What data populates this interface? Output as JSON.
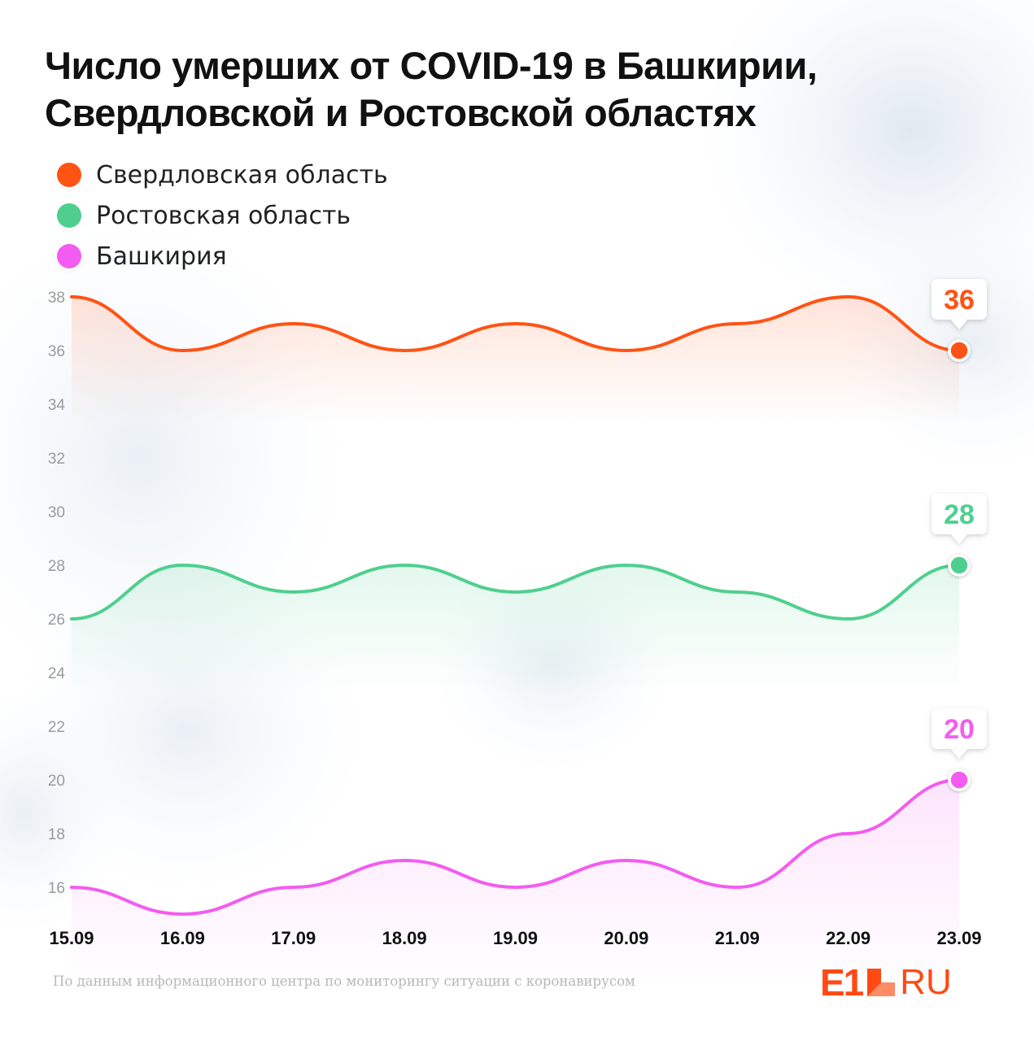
{
  "title": {
    "line1": "Число умерших от COVID-19 в Башкирии,",
    "line2": "Свердловской и Ростовской областях"
  },
  "legend": [
    {
      "label": "Свердловская область",
      "color": "#ff5314"
    },
    {
      "label": "Ростовская область",
      "color": "#4fcf8f"
    },
    {
      "label": "Башкирия",
      "color": "#f35cf0"
    }
  ],
  "chart_data": {
    "type": "line",
    "categories": [
      "15.09",
      "16.09",
      "17.09",
      "18.09",
      "19.09",
      "20.09",
      "21.09",
      "22.09",
      "23.09"
    ],
    "ylim": [
      16,
      38
    ],
    "yticks": [
      38,
      36,
      34,
      32,
      30,
      28,
      26,
      24,
      22,
      20,
      18,
      16
    ],
    "grid": false,
    "legend_position": "top-left",
    "series": [
      {
        "name": "Свердловская область",
        "color": "#ff5314",
        "values": [
          38,
          36,
          37,
          36,
          37,
          36,
          37,
          38,
          36
        ],
        "last_label": "36"
      },
      {
        "name": "Ростовская область",
        "color": "#4fcf8f",
        "values": [
          26,
          28,
          27,
          28,
          27,
          28,
          27,
          26,
          28
        ],
        "last_label": "28"
      },
      {
        "name": "Башкирия",
        "color": "#f35cf0",
        "values": [
          16,
          15,
          16,
          17,
          16,
          17,
          16,
          18,
          20
        ],
        "last_label": "20"
      }
    ]
  },
  "source": "По данным информационного центра по мониторингу ситуации с коронавирусом",
  "logo": {
    "left": "E1",
    "right": "RU"
  }
}
